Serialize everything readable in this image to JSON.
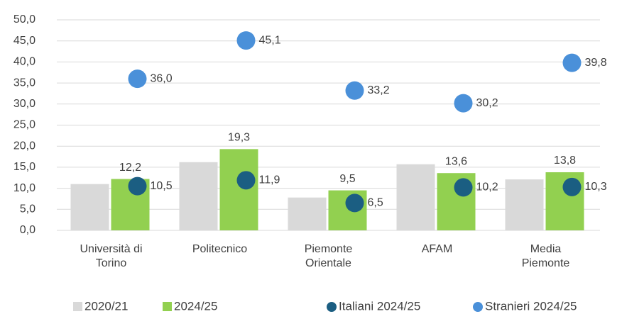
{
  "chart_data": {
    "type": "bar",
    "categories": [
      "Università di Torino",
      "Politecnico",
      "Piemonte Orientale",
      "AFAM",
      "Media Piemonte"
    ],
    "series": [
      {
        "name": "2020/21",
        "type": "bar",
        "color": "#d9d9d9",
        "values": [
          11.0,
          16.2,
          7.8,
          15.7,
          12.1
        ]
      },
      {
        "name": "2024/25",
        "type": "bar",
        "color": "#92d050",
        "values": [
          12.2,
          19.3,
          9.5,
          13.6,
          13.8
        ],
        "value_labels": [
          "12,2",
          "19,3",
          "9,5",
          "13,6",
          "13,8"
        ]
      },
      {
        "name": "Italiani 2024/25",
        "type": "scatter",
        "color": "#1b5e82",
        "values": [
          10.5,
          11.9,
          6.5,
          10.2,
          10.3
        ],
        "value_labels": [
          "10,5",
          "11,9",
          "6,5",
          "10,2",
          "10,3"
        ]
      },
      {
        "name": "Stranieri 2024/25",
        "type": "scatter",
        "color": "#4a90d9",
        "values": [
          36.0,
          45.1,
          33.2,
          30.2,
          39.8
        ],
        "value_labels": [
          "36,0",
          "45,1",
          "33,2",
          "30,2",
          "39,8"
        ]
      }
    ],
    "ylim": [
      0,
      50
    ],
    "yticks": [
      {
        "value": 0,
        "label": "0,0"
      },
      {
        "value": 5,
        "label": "5,0"
      },
      {
        "value": 10,
        "label": "10,0"
      },
      {
        "value": 15,
        "label": "15,0"
      },
      {
        "value": 20,
        "label": "20,0"
      },
      {
        "value": 25,
        "label": "25,0"
      },
      {
        "value": 30,
        "label": "30,0"
      },
      {
        "value": 35,
        "label": "35,0"
      },
      {
        "value": 40,
        "label": "40,0"
      },
      {
        "value": 45,
        "label": "45,0"
      },
      {
        "value": 50,
        "label": "50,0"
      }
    ],
    "grid": true,
    "legend": "bottom"
  }
}
